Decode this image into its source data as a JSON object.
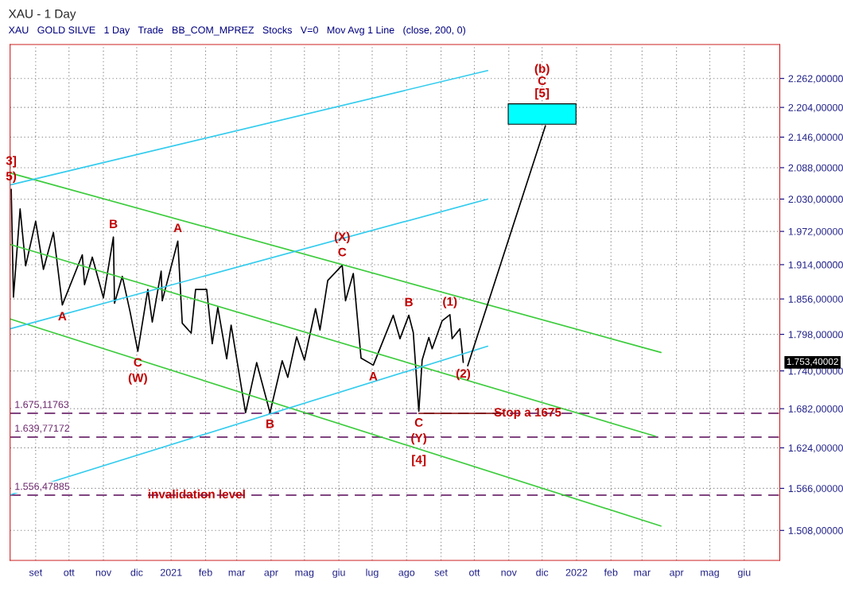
{
  "chart_data": {
    "type": "line",
    "title": "XAU - 1 Day",
    "subtitle": "XAU   GOLD SILVE   1 Day   Trade   BB_COM_MPREZ   Stocks   V=0   Mov Avg 1 Line   (close, 200, 0)",
    "log": "y",
    "grid": true,
    "xlim": [
      "2020-08-09",
      "2022-07-03"
    ],
    "xticks": [
      {
        "value": "2020-09-01",
        "label": "set"
      },
      {
        "value": "2020-10-01",
        "label": "ott"
      },
      {
        "value": "2020-11-01",
        "label": "nov"
      },
      {
        "value": "2020-12-01",
        "label": "dic"
      },
      {
        "value": "2021-01-01",
        "label": "2021"
      },
      {
        "value": "2021-02-01",
        "label": "feb"
      },
      {
        "value": "2021-03-01",
        "label": "mar"
      },
      {
        "value": "2021-04-01",
        "label": "apr"
      },
      {
        "value": "2021-05-01",
        "label": "mag"
      },
      {
        "value": "2021-06-01",
        "label": "giu"
      },
      {
        "value": "2021-07-01",
        "label": "lug"
      },
      {
        "value": "2021-08-01",
        "label": "ago"
      },
      {
        "value": "2021-09-01",
        "label": "set"
      },
      {
        "value": "2021-10-01",
        "label": "ott"
      },
      {
        "value": "2021-11-01",
        "label": "nov"
      },
      {
        "value": "2021-12-01",
        "label": "dic"
      },
      {
        "value": "2022-01-01",
        "label": "2022"
      },
      {
        "value": "2022-02-01",
        "label": "feb"
      },
      {
        "value": "2022-03-01",
        "label": "mar"
      },
      {
        "value": "2022-04-01",
        "label": "apr"
      },
      {
        "value": "2022-05-01",
        "label": "mag"
      },
      {
        "value": "2022-06-01",
        "label": "giu"
      }
    ],
    "ylim": [
      1468,
      2332
    ],
    "yticks": [
      {
        "value": 1508,
        "label": "1.508,00000"
      },
      {
        "value": 1566,
        "label": "1.566,00000"
      },
      {
        "value": 1624,
        "label": "1.624,00000"
      },
      {
        "value": 1682,
        "label": "1.682,00000"
      },
      {
        "value": 1740,
        "label": "1.740,00000"
      },
      {
        "value": 1798,
        "label": "1.798,00000"
      },
      {
        "value": 1856,
        "label": "1.856,00000"
      },
      {
        "value": 1914,
        "label": "1.914,00000"
      },
      {
        "value": 1972,
        "label": "1.972,00000"
      },
      {
        "value": 2030,
        "label": "2.030,00000"
      },
      {
        "value": 2088,
        "label": "2.088,00000"
      },
      {
        "value": 2146,
        "label": "2.146,00000"
      },
      {
        "value": 2204,
        "label": "2.204,00000"
      },
      {
        "value": 2262,
        "label": "2.262,00000"
      }
    ],
    "series": [
      {
        "color": "#000000",
        "x": [
          "2020-08-10",
          "2020-08-12",
          "2020-08-18",
          "2020-08-23",
          "2020-09-01",
          "2020-09-08",
          "2020-09-17",
          "2020-09-25",
          "2020-10-13",
          "2020-10-15",
          "2020-10-22",
          "2020-11-01",
          "2020-11-10",
          "2020-11-11",
          "2020-11-18",
          "2020-11-25",
          "2020-12-02",
          "2020-12-11",
          "2020-12-15",
          "2020-12-23",
          "2020-12-24",
          "2021-01-07",
          "2021-01-11",
          "2021-01-19",
          "2021-01-23",
          "2021-02-02",
          "2021-02-07",
          "2021-02-12",
          "2021-02-20",
          "2021-02-24",
          "2021-03-09",
          "2021-03-19",
          "2021-03-31",
          "2021-04-11",
          "2021-04-16",
          "2021-04-24",
          "2021-05-01",
          "2021-05-11",
          "2021-05-15",
          "2021-05-22",
          "2021-06-04",
          "2021-06-07",
          "2021-06-14",
          "2021-06-21",
          "2021-07-02",
          "2021-07-20",
          "2021-07-26",
          "2021-08-03",
          "2021-08-07",
          "2021-08-12",
          "2021-08-15",
          "2021-08-21",
          "2021-08-24",
          "2021-09-02",
          "2021-09-09",
          "2021-09-11",
          "2021-09-18",
          "2021-09-21"
        ],
        "values": [
          2048,
          1859,
          2012,
          1912,
          1990,
          1906,
          1970,
          1846,
          1931,
          1880,
          1927,
          1858,
          1962,
          1849,
          1894,
          1835,
          1771,
          1872,
          1818,
          1903,
          1853,
          1955,
          1816,
          1800,
          1872,
          1872,
          1783,
          1842,
          1759,
          1813,
          1676,
          1753,
          1676,
          1756,
          1730,
          1794,
          1757,
          1840,
          1805,
          1887,
          1913,
          1853,
          1899,
          1760,
          1749,
          1829,
          1791,
          1829,
          1801,
          1678,
          1757,
          1793,
          1775,
          1820,
          1830,
          1791,
          1807,
          1753.40002
        ]
      },
      {
        "type": "line",
        "color": "#3ccc3c",
        "x": [
          "2020-08-09",
          "2022-03-18"
        ],
        "values": [
          2078,
          1769
        ]
      },
      {
        "type": "line",
        "color": "#3ccc3c",
        "x": [
          "2020-08-09",
          "2022-03-13"
        ],
        "values": [
          1949,
          1641
        ]
      },
      {
        "type": "line",
        "color": "#3ccc3c",
        "x": [
          "2020-08-09",
          "2022-03-18"
        ],
        "values": [
          1823,
          1514
        ]
      },
      {
        "type": "line",
        "color": "#33ccee",
        "x": [
          "2020-08-09",
          "2021-10-13"
        ],
        "values": [
          2056,
          2278
        ]
      },
      {
        "type": "line",
        "color": "#33ccee",
        "x": [
          "2020-08-09",
          "2021-10-13"
        ],
        "values": [
          1807,
          2030
        ]
      },
      {
        "type": "line",
        "color": "#33ccee",
        "x": [
          "2020-08-09",
          "2021-10-13"
        ],
        "values": [
          1557,
          1779
        ]
      },
      {
        "type": "line",
        "color": "#000000",
        "x": [
          "2021-09-25",
          "2021-12-04"
        ],
        "values": [
          1748,
          2168
        ]
      },
      {
        "type": "line",
        "color": "#800000",
        "x": [
          "2021-08-12",
          "2021-10-26"
        ],
        "values": [
          1675,
          1675
        ]
      },
      {
        "type": "bar",
        "color": "#00ffff",
        "x": [
          "2021-12-01"
        ],
        "base": [
          2171
        ],
        "values": [
          40
        ]
      }
    ],
    "ref_lines": [
      {
        "axis": "y",
        "value": 1675.11763,
        "label": "1.675,11763",
        "color": "#6e2a6e",
        "line_style": "dashed"
      },
      {
        "axis": "y",
        "value": 1639.77172,
        "label": "1.639,77172",
        "color": "#6e2a6e",
        "line_style": "dashed"
      },
      {
        "axis": "y",
        "value": 1556.47885,
        "label": "1.556,47885",
        "color": "#6e2a6e",
        "line_style": "dashed"
      }
    ],
    "annotations": [
      {
        "text": "5)",
        "x": "2020-08-10",
        "y": 2048
      },
      {
        "text": "3]",
        "x": "2020-08-10",
        "y": 2048
      },
      {
        "text": "A",
        "x": "2020-09-25",
        "y": 1846
      },
      {
        "text": "B",
        "x": "2020-11-10",
        "y": 1962
      },
      {
        "text": "C",
        "x": "2020-12-02",
        "y": 1771
      },
      {
        "text": "(W)",
        "x": "2020-12-02",
        "y": 1771
      },
      {
        "text": "A",
        "x": "2021-01-07",
        "y": 1955
      },
      {
        "text": "B",
        "x": "2021-03-31",
        "y": 1676
      },
      {
        "text": "C",
        "x": "2021-06-04",
        "y": 1913
      },
      {
        "text": "(X)",
        "x": "2021-06-04",
        "y": 1913
      },
      {
        "text": "A",
        "x": "2021-07-02",
        "y": 1749
      },
      {
        "text": "B",
        "x": "2021-08-03",
        "y": 1829
      },
      {
        "text": "C",
        "x": "2021-08-12",
        "y": 1678
      },
      {
        "text": "(Y)",
        "x": "2021-08-12",
        "y": 1678
      },
      {
        "text": "[4]",
        "x": "2021-08-12",
        "y": 1623
      },
      {
        "text": "(1)",
        "x": "2021-09-09",
        "y": 1830
      },
      {
        "text": "(2)",
        "x": "2021-09-21",
        "y": 1753.40002
      },
      {
        "text": "[5]",
        "x": "2021-12-01",
        "y": 2211
      },
      {
        "text": "C",
        "x": "2021-12-01",
        "y": 2211
      },
      {
        "text": "(b)",
        "x": "2021-12-01",
        "y": 2211
      },
      {
        "text": "Stop a 1675",
        "x": "2021-11-18",
        "y": 1675.11763
      },
      {
        "text": "invalidation level",
        "x": "2021-01-24",
        "y": 1556.47885
      },
      "1.753,40002"
    ]
  }
}
